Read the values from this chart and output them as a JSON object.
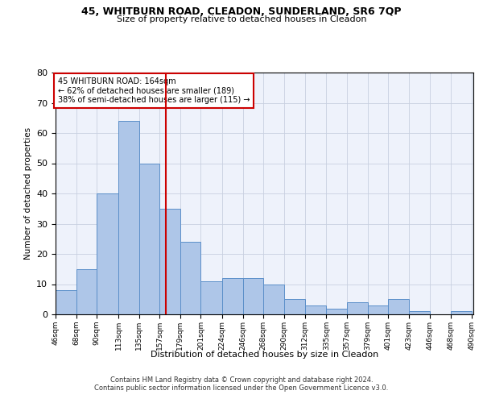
{
  "title1": "45, WHITBURN ROAD, CLEADON, SUNDERLAND, SR6 7QP",
  "title2": "Size of property relative to detached houses in Cleadon",
  "xlabel": "Distribution of detached houses by size in Cleadon",
  "ylabel": "Number of detached properties",
  "footnote1": "Contains HM Land Registry data © Crown copyright and database right 2024.",
  "footnote2": "Contains public sector information licensed under the Open Government Licence v3.0.",
  "annotation_line1": "45 WHITBURN ROAD: 164sqm",
  "annotation_line2": "← 62% of detached houses are smaller (189)",
  "annotation_line3": "38% of semi-detached houses are larger (115) →",
  "bar_left_edges": [
    46,
    68,
    90,
    113,
    135,
    157,
    179,
    201,
    224,
    246,
    268,
    290,
    312,
    335,
    357,
    379,
    401,
    423,
    446,
    468
  ],
  "bar_widths": [
    22,
    22,
    23,
    22,
    22,
    22,
    22,
    23,
    22,
    22,
    22,
    22,
    23,
    22,
    22,
    22,
    22,
    23,
    22,
    22
  ],
  "bar_heights": [
    8,
    15,
    40,
    64,
    50,
    35,
    24,
    11,
    12,
    12,
    10,
    5,
    3,
    2,
    4,
    3,
    5,
    1,
    0,
    1
  ],
  "bar_color": "#aec6e8",
  "bar_edge_color": "#5b8fc9",
  "vline_x": 164,
  "vline_color": "#cc0000",
  "bg_color": "#eef2fb",
  "grid_color": "#c8d0e0",
  "ylim": [
    0,
    80
  ],
  "yticks": [
    0,
    10,
    20,
    30,
    40,
    50,
    60,
    70,
    80
  ],
  "tick_labels": [
    "46sqm",
    "68sqm",
    "90sqm",
    "113sqm",
    "135sqm",
    "157sqm",
    "179sqm",
    "201sqm",
    "224sqm",
    "246sqm",
    "268sqm",
    "290sqm",
    "312sqm",
    "335sqm",
    "357sqm",
    "379sqm",
    "401sqm",
    "423sqm",
    "446sqm",
    "468sqm",
    "490sqm"
  ],
  "xlim_left": 46,
  "xlim_right": 492
}
